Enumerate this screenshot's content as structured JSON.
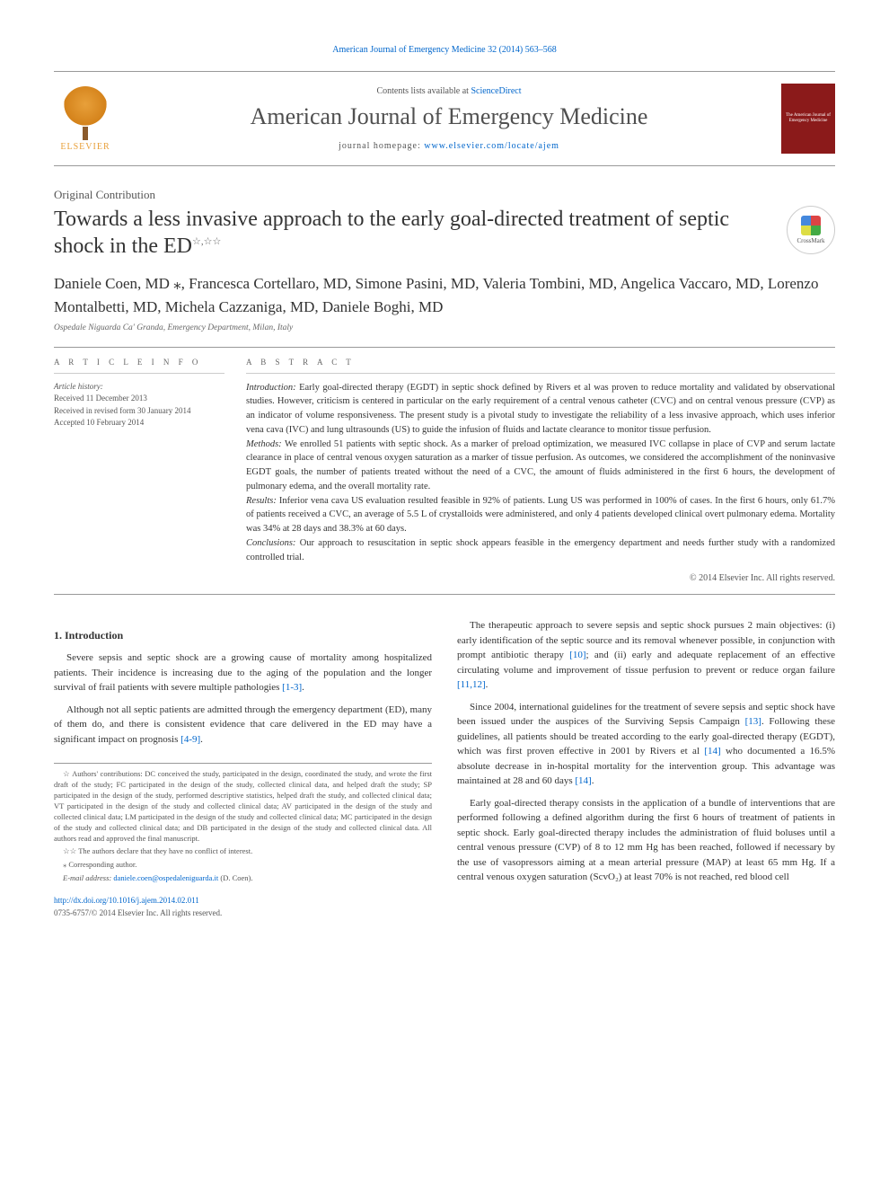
{
  "top_citation": "American Journal of Emergency Medicine 32 (2014) 563–568",
  "header": {
    "contents_prefix": "Contents lists available at ",
    "contents_link": "ScienceDirect",
    "journal_name": "American Journal of Emergency Medicine",
    "homepage_prefix": "journal homepage: ",
    "homepage_link": "www.elsevier.com/locate/ajem",
    "elsevier_label": "ELSEVIER",
    "cover_text": "The American Journal of Emergency Medicine"
  },
  "article_type": "Original Contribution",
  "title": "Towards a less invasive approach to the early goal-directed treatment of septic shock in the ED",
  "title_stars": "☆,☆☆",
  "crossmark_label": "CrossMark",
  "authors": "Daniele Coen, MD ⁎, Francesca Cortellaro, MD, Simone Pasini, MD, Valeria Tombini, MD, Angelica Vaccaro, MD, Lorenzo Montalbetti, MD, Michela Cazzaniga, MD, Daniele Boghi, MD",
  "affiliation": "Ospedale Niguarda Ca' Granda, Emergency Department, Milan, Italy",
  "article_info": {
    "head": "A R T I C L E  I N F O",
    "history_label": "Article history:",
    "received": "Received 11 December 2013",
    "revised": "Received in revised form 30 January 2014",
    "accepted": "Accepted 10 February 2014"
  },
  "abstract": {
    "head": "A B S T R A C T",
    "intro_label": "Introduction: ",
    "intro": "Early goal-directed therapy (EGDT) in septic shock defined by Rivers et al was proven to reduce mortality and validated by observational studies. However, criticism is centered in particular on the early requirement of a central venous catheter (CVC) and on central venous pressure (CVP) as an indicator of volume responsiveness. The present study is a pivotal study to investigate the reliability of a less invasive approach, which uses inferior vena cava (IVC) and lung ultrasounds (US) to guide the infusion of fluids and lactate clearance to monitor tissue perfusion.",
    "methods_label": "Methods: ",
    "methods": "We enrolled 51 patients with septic shock. As a marker of preload optimization, we measured IVC collapse in place of CVP and serum lactate clearance in place of central venous oxygen saturation as a marker of tissue perfusion. As outcomes, we considered the accomplishment of the noninvasive EGDT goals, the number of patients treated without the need of a CVC, the amount of fluids administered in the first 6 hours, the development of pulmonary edema, and the overall mortality rate.",
    "results_label": "Results: ",
    "results": "Inferior vena cava US evaluation resulted feasible in 92% of patients. Lung US was performed in 100% of cases. In the first 6 hours, only 61.7% of patients received a CVC, an average of 5.5 L of crystalloids were administered, and only 4 patients developed clinical overt pulmonary edema. Mortality was 34% at 28 days and 38.3% at 60 days.",
    "conclusions_label": "Conclusions: ",
    "conclusions": "Our approach to resuscitation in septic shock appears feasible in the emergency department and needs further study with a randomized controlled trial.",
    "copyright": "© 2014 Elsevier Inc. All rights reserved."
  },
  "body": {
    "intro_head": "1. Introduction",
    "left_p1": "Severe sepsis and septic shock are a growing cause of mortality among hospitalized patients. Their incidence is increasing due to the aging of the population and the longer survival of frail patients with severe multiple pathologies ",
    "left_p1_ref": "[1-3]",
    "left_p1_end": ".",
    "left_p2": "Although not all septic patients are admitted through the emergency department (ED), many of them do, and there is consistent evidence that care delivered in the ED may have a significant impact on prognosis ",
    "left_p2_ref": "[4-9]",
    "left_p2_end": ".",
    "right_p1": "The therapeutic approach to severe sepsis and septic shock pursues 2 main objectives: (i) early identification of the septic source and its removal whenever possible, in conjunction with prompt antibiotic therapy ",
    "right_p1_ref": "[10]",
    "right_p1_mid": "; and (ii) early and adequate replacement of an effective circulating volume and improvement of tissue perfusion to prevent or reduce organ failure ",
    "right_p1_ref2": "[11,12]",
    "right_p1_end": ".",
    "right_p2": "Since 2004, international guidelines for the treatment of severe sepsis and septic shock have been issued under the auspices of the Surviving Sepsis Campaign ",
    "right_p2_ref": "[13]",
    "right_p2_mid": ". Following these guidelines, all patients should be treated according to the early goal-directed therapy (EGDT), which was first proven effective in 2001 by Rivers et al ",
    "right_p2_ref2": "[14]",
    "right_p2_mid2": " who documented a 16.5% absolute decrease in in-hospital mortality for the intervention group. This advantage was maintained at 28 and 60 days ",
    "right_p2_ref3": "[14]",
    "right_p2_end": ".",
    "right_p3": "Early goal-directed therapy consists in the application of a bundle of interventions that are performed following a defined algorithm during the first 6 hours of treatment of patients in septic shock. Early goal-directed therapy includes the administration of fluid boluses until a central venous pressure (CVP) of 8 to 12 mm Hg has been reached, followed if necessary by the use of vasopressors aiming at a mean arterial pressure (MAP) at least 65 mm Hg. If a central venous oxygen saturation (ScvO₂) at least 70% is not reached, red blood cell"
  },
  "footnotes": {
    "fn1_mark": "☆ ",
    "fn1": "Authors' contributions: DC conceived the study, participated in the design, coordinated the study, and wrote the first draft of the study; FC participated in the design of the study, collected clinical data, and helped draft the study; SP participated in the design of the study, performed descriptive statistics, helped draft the study, and collected clinical data; VT participated in the design of the study and collected clinical data; AV participated in the design of the study and collected clinical data; LM participated in the design of the study and collected clinical data; MC participated in the design of the study and collected clinical data; and DB participated in the design of the study and collected clinical data. All authors read and approved the final manuscript.",
    "fn2_mark": "☆☆ ",
    "fn2": "The authors declare that they have no conflict of interest.",
    "corr_mark": "⁎ ",
    "corr": "Corresponding author.",
    "email_label": "E-mail address: ",
    "email": "daniele.coen@ospedaleniguarda.it",
    "email_suffix": " (D. Coen)."
  },
  "doi": "http://dx.doi.org/10.1016/j.ajem.2014.02.011",
  "issn": "0735-6757/© 2014 Elsevier Inc. All rights reserved.",
  "colors": {
    "link": "#0066cc",
    "text": "#333333",
    "muted": "#555555",
    "border": "#999999",
    "cover_bg": "#8b1a1a",
    "elsevier_orange": "#e8a03a"
  }
}
